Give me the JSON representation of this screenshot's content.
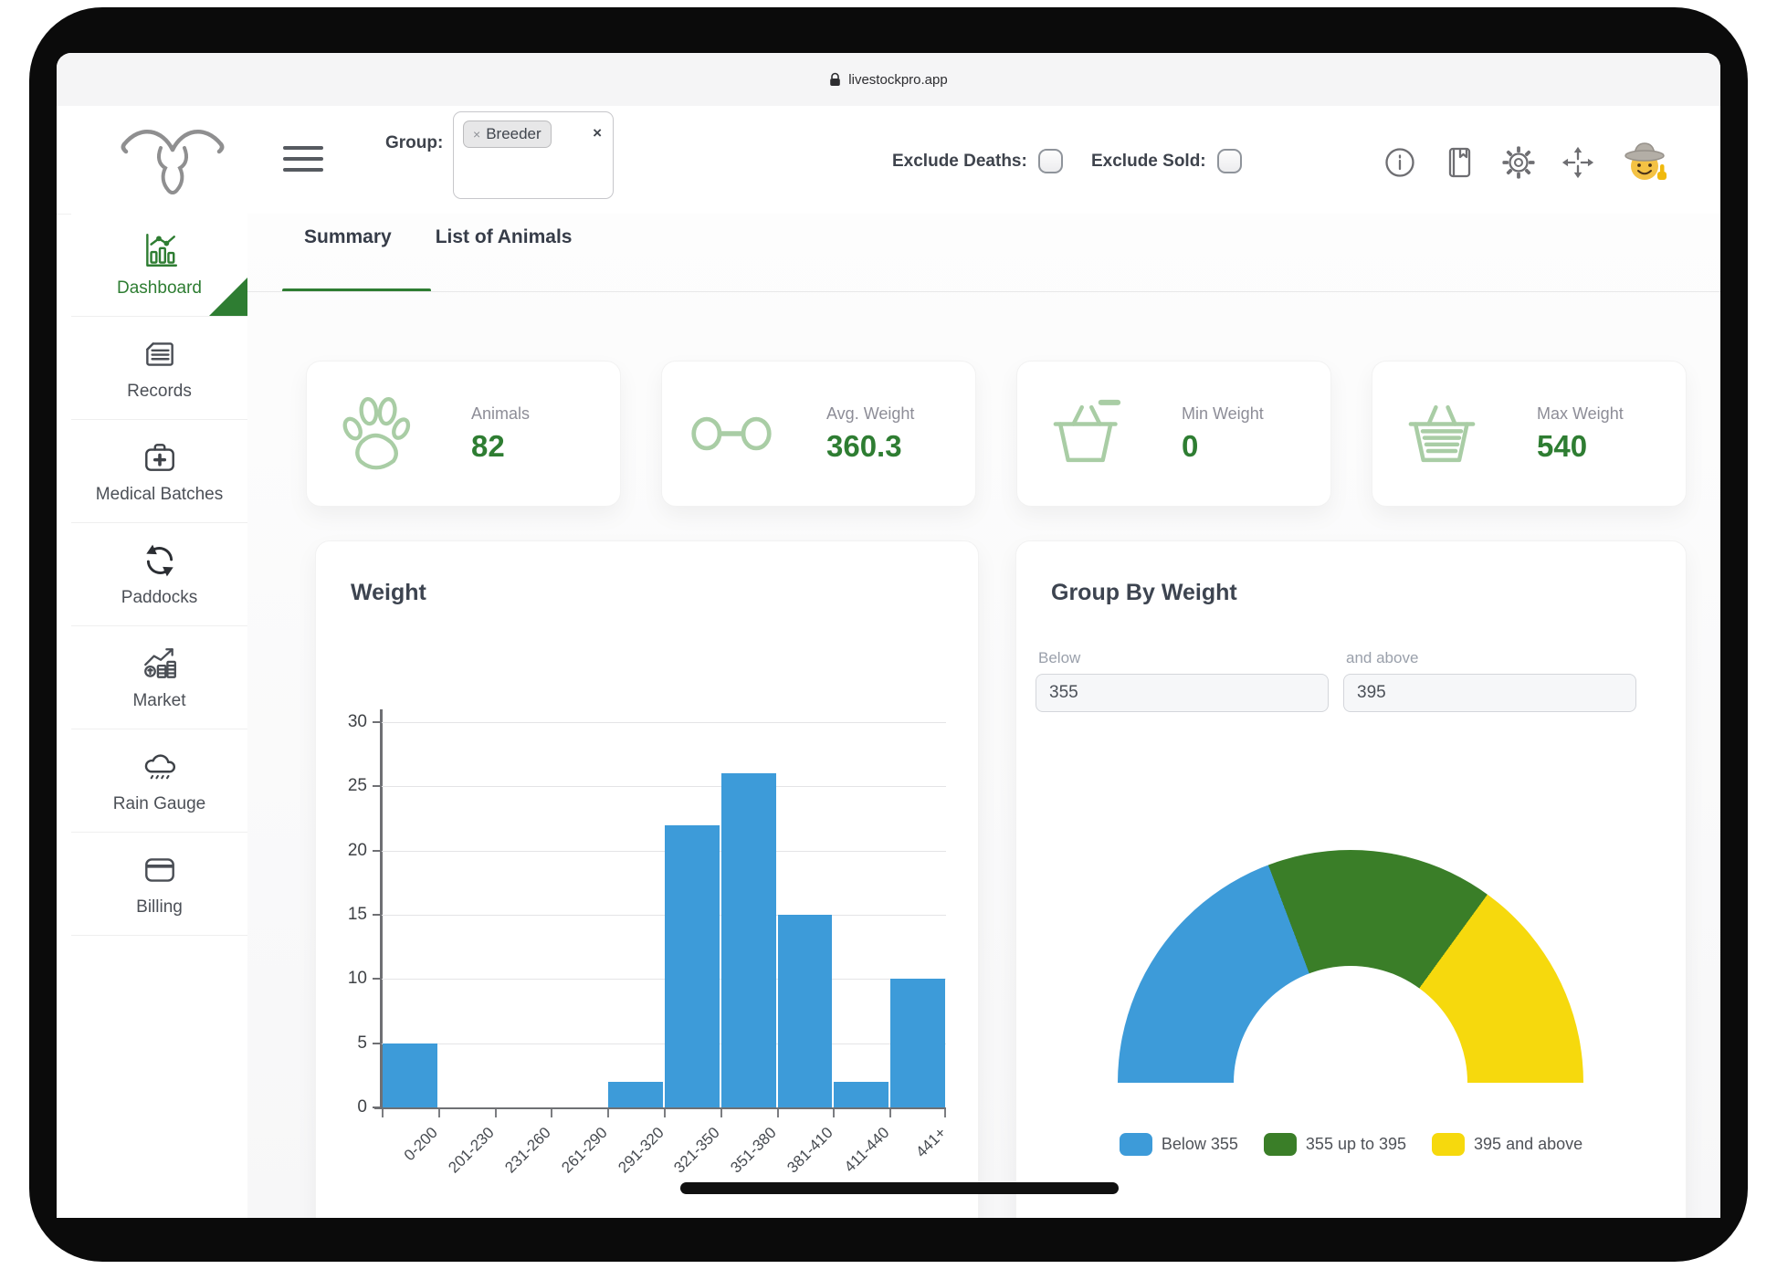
{
  "browser": {
    "url": "livestockpro.app"
  },
  "header": {
    "group_label": "Group:",
    "group_value": "Breeder",
    "chip_remove_icon": "×",
    "clear_icon": "×",
    "exclude_deaths_label": "Exclude Deaths:",
    "exclude_deaths_checked": false,
    "exclude_sold_label": "Exclude Sold:",
    "exclude_sold_checked": false
  },
  "sidebar": {
    "items": [
      {
        "label": "Dashboard",
        "icon": "bar-chart-icon",
        "active": true
      },
      {
        "label": "Records",
        "icon": "document-icon",
        "active": false
      },
      {
        "label": "Medical Batches",
        "icon": "medical-kit-icon",
        "active": false
      },
      {
        "label": "Paddocks",
        "icon": "refresh-icon",
        "active": false
      },
      {
        "label": "Market",
        "icon": "market-chart-icon",
        "active": false
      },
      {
        "label": "Rain Gauge",
        "icon": "rain-cloud-icon",
        "active": false
      },
      {
        "label": "Billing",
        "icon": "credit-card-icon",
        "active": false
      }
    ]
  },
  "tabs": [
    {
      "label": "Summary",
      "active": true
    },
    {
      "label": "List of Animals",
      "active": false
    }
  ],
  "stats": [
    {
      "label": "Animals",
      "value": "82",
      "icon": "paw-icon"
    },
    {
      "label": "Avg. Weight",
      "value": "360.3",
      "icon": "link-weight-icon"
    },
    {
      "label": "Min Weight",
      "value": "0",
      "icon": "basket-minus-icon"
    },
    {
      "label": "Max Weight",
      "value": "540",
      "icon": "basket-full-icon"
    }
  ],
  "weight_panel": {
    "title": "Weight"
  },
  "group_by_weight_panel": {
    "title": "Group By Weight",
    "below_label": "Below",
    "below_value": "355",
    "above_label": "and above",
    "above_value": "395"
  },
  "chart_data": [
    {
      "type": "bar",
      "title": "Weight",
      "categories": [
        "0-200",
        "201-230",
        "231-260",
        "261-290",
        "291-320",
        "321-350",
        "351-380",
        "381-410",
        "411-440",
        "441+"
      ],
      "values": [
        5,
        0,
        0,
        0,
        2,
        22,
        26,
        15,
        2,
        10
      ],
      "xlabel": "",
      "ylabel": "",
      "ylim": [
        0,
        30
      ],
      "yticks": [
        0,
        5,
        10,
        15,
        20,
        25,
        30
      ],
      "bar_color": "#3d9bd9",
      "grid": true,
      "x_label_rotation": -45
    },
    {
      "type": "pie",
      "subtype": "half-donut",
      "title": "Group By Weight",
      "labels": [
        "Below 355",
        "355 up to 395",
        "395 and above"
      ],
      "values_pct": [
        38.5,
        31.5,
        30
      ],
      "colors": [
        "#3d9bd9",
        "#3a7e28",
        "#f6d90d"
      ],
      "legend_position": "bottom"
    }
  ],
  "colors": {
    "accent_green": "#2e7d32",
    "bar_blue": "#3d9bd9",
    "gauge_green": "#3a7e28",
    "gauge_yellow": "#f6d90d",
    "pale_icon_green": "#a9cda5"
  },
  "device": {
    "home_indicator": true
  }
}
